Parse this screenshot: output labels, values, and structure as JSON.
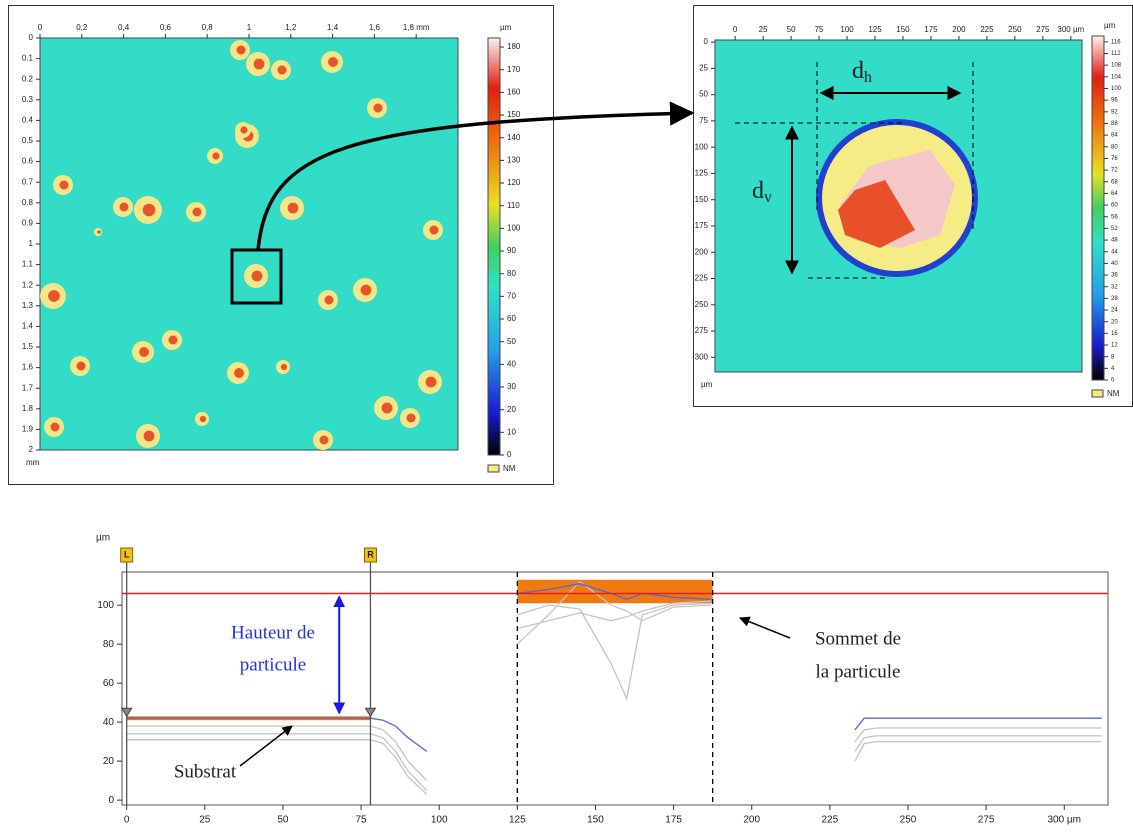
{
  "chart_data": [
    {
      "type": "heatmap",
      "xticks": [
        0,
        {
          "value": 0.2,
          "label": "0,2"
        },
        {
          "value": 0.4,
          "label": "0,4"
        },
        {
          "value": 0.6,
          "label": "0,6"
        },
        {
          "value": 0.8,
          "label": "0,8"
        },
        1,
        {
          "value": 1.2,
          "label": "1,2"
        },
        {
          "value": 1.4,
          "label": "1,4"
        },
        {
          "value": 1.6,
          "label": "1,6"
        },
        {
          "value": 1.8,
          "label": "1,8 mm"
        }
      ],
      "xlim": [
        0,
        2
      ],
      "x_unit": "mm",
      "yticks": [
        0,
        0.1,
        0.2,
        0.3,
        0.4,
        0.5,
        0.6,
        0.7,
        0.8,
        0.9,
        1,
        1.1,
        1.2,
        1.3,
        1.4,
        1.5,
        1.6,
        1.7,
        1.8,
        1.9,
        2
      ],
      "ylim": [
        0,
        2
      ],
      "colorbar_unit": "µm",
      "clim": [
        0,
        184
      ],
      "cticks": [
        0,
        10,
        20,
        30,
        40,
        50,
        60,
        70,
        80,
        90,
        100,
        110,
        120,
        130,
        140,
        150,
        160,
        170,
        180
      ],
      "nm_label": "NM"
    },
    {
      "type": "heatmap",
      "xticks": [
        0,
        25,
        50,
        75,
        100,
        125,
        150,
        175,
        200,
        225,
        250,
        275,
        {
          "value": 300,
          "label": "300 µm"
        }
      ],
      "xlim": [
        -18,
        310
      ],
      "x_unit": "µm",
      "yticks": [
        0,
        25,
        50,
        75,
        100,
        125,
        150,
        175,
        200,
        225,
        250,
        275,
        300
      ],
      "ylim": [
        -2,
        314
      ],
      "colorbar_unit": "µm",
      "clim": [
        0,
        118
      ],
      "cticks": [
        0,
        4,
        8,
        12,
        16,
        20,
        24,
        28,
        32,
        36,
        40,
        44,
        48,
        52,
        56,
        60,
        64,
        68,
        72,
        76,
        80,
        84,
        88,
        92,
        96,
        100,
        104,
        108,
        112,
        116
      ],
      "nm_label": "NM",
      "annotations": [
        {
          "text": "d",
          "sub": "h"
        },
        {
          "text": "d",
          "sub": "v"
        }
      ]
    },
    {
      "type": "line",
      "y_unit": "µm",
      "xlim": [
        -1.5,
        314
      ],
      "ylim": [
        -2.5,
        117
      ],
      "xticks": [
        0,
        25,
        50,
        75,
        100,
        125,
        150,
        175,
        200,
        225,
        250,
        275,
        {
          "value": 300,
          "label": "300 µm"
        }
      ],
      "yticks": [
        0,
        20,
        40,
        60,
        80,
        100
      ],
      "x": [
        0,
        10,
        20,
        30,
        40,
        50,
        60,
        70,
        78,
        82,
        86,
        90,
        96,
        110,
        125,
        135,
        145,
        155,
        160,
        165,
        175,
        187,
        210,
        233,
        236,
        240,
        250,
        260,
        270,
        280,
        290,
        300,
        312
      ],
      "series": [
        {
          "color": "#c4c4c4",
          "values": [
            38,
            38,
            38,
            38,
            38,
            38,
            38,
            38,
            38,
            36,
            30,
            20,
            10,
            null,
            95,
            100,
            98,
            70,
            52,
            95,
            100,
            101,
            null,
            30,
            36,
            37,
            37,
            37,
            37,
            37,
            37,
            37,
            37
          ]
        },
        {
          "color": "#c4c4c4",
          "values": [
            34,
            34,
            34,
            34,
            34,
            34,
            34,
            34,
            34,
            32,
            25,
            15,
            5,
            null,
            80,
            95,
            112,
            100,
            97,
            92,
            99,
            100,
            null,
            25,
            32,
            33,
            33,
            33,
            33,
            33,
            33,
            33,
            33
          ]
        },
        {
          "color": "#c4c4c4",
          "values": [
            31,
            31,
            31,
            31,
            31,
            31,
            31,
            31,
            31,
            29,
            22,
            12,
            3,
            null,
            88,
            92,
            96,
            92,
            94,
            97,
            101,
            102,
            null,
            20,
            29,
            30,
            30,
            30,
            30,
            30,
            30,
            30,
            30
          ]
        },
        {
          "color": "#5566dd",
          "values": [
            42,
            42,
            42,
            42,
            42,
            42,
            42,
            42,
            42,
            41,
            38,
            32,
            25,
            null,
            106,
            108,
            111,
            106,
            103,
            106,
            104,
            103,
            null,
            36,
            42,
            42,
            42,
            42,
            42,
            42,
            42,
            42,
            42
          ]
        }
      ],
      "hline": 106,
      "hline_color": "#e02020",
      "bands": [
        {
          "x": [
            0,
            78
          ],
          "y": [
            41,
            43
          ]
        },
        {
          "x": [
            125,
            187.5
          ],
          "y": [
            101,
            113
          ]
        }
      ],
      "band_color": "#f07a10",
      "cursors": [
        {
          "label": "L",
          "x": 0
        },
        {
          "label": "R",
          "x": 78
        }
      ],
      "vlines": [
        125,
        187.5
      ],
      "height_arrow_x": 68,
      "annotations": {
        "height": [
          "Hauteur de",
          "particule"
        ],
        "top": [
          "Sommet de",
          "la particule"
        ],
        "substrate": "Substrat"
      }
    }
  ]
}
